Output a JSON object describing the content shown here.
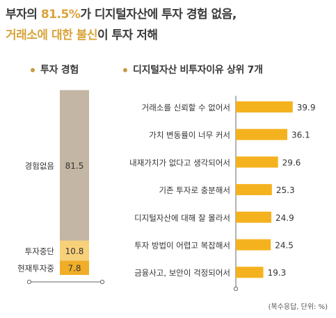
{
  "headline": {
    "line1_pre": "부자의 ",
    "line1_highlight": "81.5%",
    "line1_post": "가 디지털자산에 투자 경험 없음,",
    "line2_highlight": "거래소에 대한 불신",
    "line2_post": "이 투자 저해"
  },
  "legend": {
    "left": "투자 경험",
    "right": "디지털자산 비투자이유 상위 7개"
  },
  "unit_note": "(복수응답, 단위: %)",
  "colors": {
    "highlight": "#d9a43a",
    "stack_none": "#c4b6a4",
    "stack_stopped": "#f7d07a",
    "stack_current": "#f0ad28",
    "bar": "#f5b21f",
    "axis": "#666666"
  },
  "chart_data": [
    {
      "type": "bar",
      "subtype": "stacked",
      "title": "투자 경험",
      "categories": [
        "현재투자중",
        "투자중단",
        "경험없음"
      ],
      "values": [
        7.8,
        10.8,
        81.5
      ],
      "ylim": [
        0,
        100
      ]
    },
    {
      "type": "bar",
      "orientation": "horizontal",
      "title": "디지털자산 비투자이유 상위 7개",
      "categories": [
        "거래소를 신뢰할 수 없어서",
        "가치 변동률이 너무 커서",
        "내재가치가 없다고 생각되어서",
        "기존 투자로 충분해서",
        "디지털자산에 대해 잘 몰라서",
        "투자 방법이 어렵고 복잡해서",
        "금융사고, 보안이 걱정되어서"
      ],
      "values": [
        39.9,
        36.1,
        29.6,
        25.3,
        24.9,
        24.5,
        19.3
      ],
      "xlim": [
        0,
        100
      ],
      "grid": false
    }
  ]
}
